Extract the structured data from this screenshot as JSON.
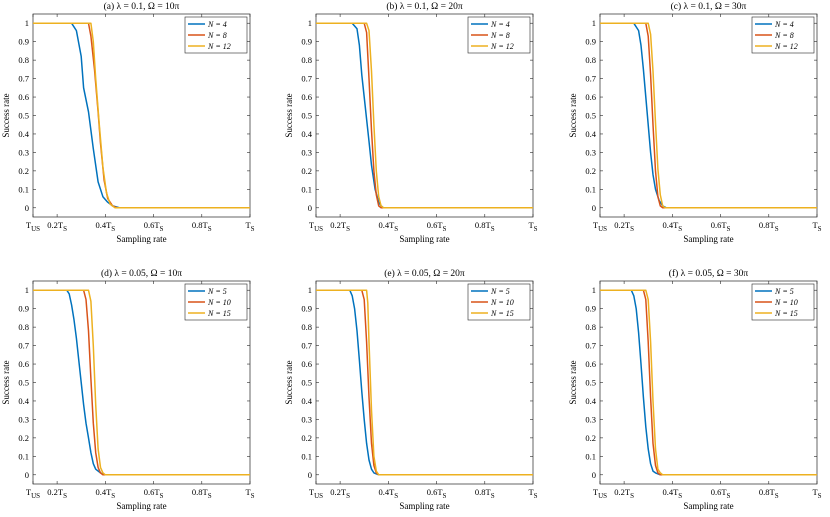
{
  "chart_data": [
    {
      "type": "line",
      "title": "(a) λ = 0.1, Ω = 10π",
      "xlabel": "Sampling rate",
      "ylabel": "Success rate",
      "xlim": [
        0.1,
        1.0
      ],
      "ylim": [
        -0.05,
        1.05
      ],
      "xtick_labels": [
        {
          "value": 0.1,
          "main": "T",
          "sub": "US"
        },
        {
          "value": 0.2,
          "main": "0.2T",
          "sub": "S"
        },
        {
          "value": 0.4,
          "main": "0.4T",
          "sub": "S"
        },
        {
          "value": 0.6,
          "main": "0.6T",
          "sub": "S"
        },
        {
          "value": 0.8,
          "main": "0.8T",
          "sub": "S"
        },
        {
          "value": 1.0,
          "main": "T",
          "sub": "S"
        }
      ],
      "ytick_labels": [
        "0",
        "0.1",
        "0.2",
        "0.3",
        "0.4",
        "0.5",
        "0.6",
        "0.7",
        "0.8",
        "0.9",
        "1"
      ],
      "legend_position": "top-right",
      "series": [
        {
          "name": "N = 4",
          "color": "#0072BD",
          "x": [
            0.1,
            0.26,
            0.28,
            0.3,
            0.31,
            0.33,
            0.35,
            0.37,
            0.39,
            0.41,
            0.43,
            0.46,
            1.0
          ],
          "y": [
            1,
            1,
            0.96,
            0.82,
            0.65,
            0.52,
            0.32,
            0.14,
            0.06,
            0.03,
            0.01,
            0,
            0
          ]
        },
        {
          "name": "N = 8",
          "color": "#D95319",
          "x": [
            0.1,
            0.33,
            0.34,
            0.355,
            0.37,
            0.38,
            0.395,
            0.41,
            0.43,
            0.45,
            1.0
          ],
          "y": [
            1,
            1,
            0.93,
            0.75,
            0.52,
            0.35,
            0.15,
            0.05,
            0.01,
            0,
            0
          ]
        },
        {
          "name": "N = 12",
          "color": "#EDB120",
          "x": [
            0.1,
            0.34,
            0.35,
            0.36,
            0.375,
            0.39,
            0.405,
            0.42,
            0.44,
            1.0
          ],
          "y": [
            1,
            1,
            0.9,
            0.7,
            0.45,
            0.22,
            0.08,
            0.02,
            0,
            0
          ]
        }
      ]
    },
    {
      "type": "line",
      "title": "(b) λ = 0.1, Ω = 20π",
      "xlabel": "Sampling rate",
      "ylabel": "Success rate",
      "xlim": [
        0.1,
        1.0
      ],
      "ylim": [
        -0.05,
        1.05
      ],
      "xtick_labels": [
        {
          "value": 0.1,
          "main": "T",
          "sub": "US"
        },
        {
          "value": 0.2,
          "main": "0.2T",
          "sub": "S"
        },
        {
          "value": 0.4,
          "main": "0.4T",
          "sub": "S"
        },
        {
          "value": 0.6,
          "main": "0.6T",
          "sub": "S"
        },
        {
          "value": 0.8,
          "main": "0.8T",
          "sub": "S"
        },
        {
          "value": 1.0,
          "main": "T",
          "sub": "S"
        }
      ],
      "ytick_labels": [
        "0",
        "0.1",
        "0.2",
        "0.3",
        "0.4",
        "0.5",
        "0.6",
        "0.7",
        "0.8",
        "0.9",
        "1"
      ],
      "legend_position": "top-right",
      "series": [
        {
          "name": "N = 4",
          "color": "#0072BD",
          "x": [
            0.1,
            0.25,
            0.27,
            0.28,
            0.29,
            0.3,
            0.31,
            0.32,
            0.33,
            0.345,
            0.36,
            0.37,
            0.38,
            1.0
          ],
          "y": [
            1,
            1,
            0.97,
            0.88,
            0.72,
            0.6,
            0.48,
            0.36,
            0.23,
            0.1,
            0.03,
            0.01,
            0,
            0
          ]
        },
        {
          "name": "N = 8",
          "color": "#D95319",
          "x": [
            0.1,
            0.3,
            0.31,
            0.32,
            0.33,
            0.34,
            0.35,
            0.36,
            0.37,
            1.0
          ],
          "y": [
            1,
            1,
            0.95,
            0.7,
            0.42,
            0.2,
            0.07,
            0.01,
            0,
            0
          ]
        },
        {
          "name": "N = 12",
          "color": "#EDB120",
          "x": [
            0.1,
            0.31,
            0.32,
            0.33,
            0.34,
            0.35,
            0.36,
            0.37,
            0.38,
            1.0
          ],
          "y": [
            1,
            1,
            0.96,
            0.74,
            0.45,
            0.2,
            0.06,
            0.01,
            0,
            0
          ]
        }
      ]
    },
    {
      "type": "line",
      "title": "(c) λ = 0.1, Ω = 30π",
      "xlabel": "Sampling rate",
      "ylabel": "Success rate",
      "xlim": [
        0.1,
        1.0
      ],
      "ylim": [
        -0.05,
        1.05
      ],
      "xtick_labels": [
        {
          "value": 0.1,
          "main": "T",
          "sub": "US"
        },
        {
          "value": 0.2,
          "main": "0.2T",
          "sub": "S"
        },
        {
          "value": 0.4,
          "main": "0.4T",
          "sub": "S"
        },
        {
          "value": 0.6,
          "main": "0.6T",
          "sub": "S"
        },
        {
          "value": 0.8,
          "main": "0.8T",
          "sub": "S"
        },
        {
          "value": 1.0,
          "main": "T",
          "sub": "S"
        }
      ],
      "ytick_labels": [
        "0",
        "0.1",
        "0.2",
        "0.3",
        "0.4",
        "0.5",
        "0.6",
        "0.7",
        "0.8",
        "0.9",
        "1"
      ],
      "legend_position": "top-right",
      "series": [
        {
          "name": "N = 4",
          "color": "#0072BD",
          "x": [
            0.1,
            0.24,
            0.26,
            0.27,
            0.28,
            0.29,
            0.3,
            0.31,
            0.32,
            0.33,
            0.345,
            0.36,
            0.375,
            1.0
          ],
          "y": [
            1,
            1,
            0.96,
            0.88,
            0.75,
            0.6,
            0.45,
            0.3,
            0.18,
            0.1,
            0.04,
            0.01,
            0,
            0
          ]
        },
        {
          "name": "N = 8",
          "color": "#D95319",
          "x": [
            0.1,
            0.29,
            0.3,
            0.31,
            0.32,
            0.33,
            0.34,
            0.35,
            0.36,
            1.0
          ],
          "y": [
            1,
            1,
            0.93,
            0.72,
            0.45,
            0.2,
            0.06,
            0.01,
            0,
            0
          ]
        },
        {
          "name": "N = 12",
          "color": "#EDB120",
          "x": [
            0.1,
            0.3,
            0.31,
            0.32,
            0.33,
            0.34,
            0.35,
            0.36,
            0.37,
            1.0
          ],
          "y": [
            1,
            1,
            0.94,
            0.74,
            0.46,
            0.21,
            0.07,
            0.01,
            0,
            0
          ]
        }
      ]
    },
    {
      "type": "line",
      "title": "(d) λ = 0.05, Ω = 10π",
      "xlabel": "Sampling rate",
      "ylabel": "Success rate",
      "xlim": [
        0.1,
        1.0
      ],
      "ylim": [
        -0.05,
        1.05
      ],
      "xtick_labels": [
        {
          "value": 0.1,
          "main": "T",
          "sub": "US"
        },
        {
          "value": 0.2,
          "main": "0.2T",
          "sub": "S"
        },
        {
          "value": 0.4,
          "main": "0.4T",
          "sub": "S"
        },
        {
          "value": 0.6,
          "main": "0.6T",
          "sub": "S"
        },
        {
          "value": 0.8,
          "main": "0.8T",
          "sub": "S"
        },
        {
          "value": 1.0,
          "main": "T",
          "sub": "S"
        }
      ],
      "ytick_labels": [
        "0",
        "0.1",
        "0.2",
        "0.3",
        "0.4",
        "0.5",
        "0.6",
        "0.7",
        "0.8",
        "0.9",
        "1"
      ],
      "legend_position": "top-right",
      "series": [
        {
          "name": "N = 5",
          "color": "#0072BD",
          "x": [
            0.1,
            0.24,
            0.25,
            0.26,
            0.27,
            0.28,
            0.29,
            0.3,
            0.31,
            0.32,
            0.33,
            0.34,
            0.35,
            0.36,
            0.38,
            0.4,
            1.0
          ],
          "y": [
            1,
            1,
            0.98,
            0.92,
            0.84,
            0.74,
            0.62,
            0.5,
            0.38,
            0.28,
            0.2,
            0.12,
            0.06,
            0.03,
            0.01,
            0,
            0
          ]
        },
        {
          "name": "N = 10",
          "color": "#D95319",
          "x": [
            0.1,
            0.31,
            0.32,
            0.33,
            0.34,
            0.35,
            0.36,
            0.37,
            0.38,
            0.39,
            1.0
          ],
          "y": [
            1,
            1,
            0.95,
            0.78,
            0.52,
            0.28,
            0.12,
            0.04,
            0.01,
            0,
            0
          ]
        },
        {
          "name": "N = 15",
          "color": "#EDB120",
          "x": [
            0.1,
            0.33,
            0.34,
            0.35,
            0.36,
            0.37,
            0.38,
            0.39,
            0.4,
            1.0
          ],
          "y": [
            1,
            1,
            0.94,
            0.7,
            0.38,
            0.14,
            0.04,
            0.01,
            0,
            0
          ]
        }
      ]
    },
    {
      "type": "line",
      "title": "(e) λ = 0.05, Ω = 20π",
      "xlabel": "Sampling rate",
      "ylabel": "Success rate",
      "xlim": [
        0.1,
        1.0
      ],
      "ylim": [
        -0.05,
        1.05
      ],
      "xtick_labels": [
        {
          "value": 0.1,
          "main": "T",
          "sub": "US"
        },
        {
          "value": 0.2,
          "main": "0.2T",
          "sub": "S"
        },
        {
          "value": 0.4,
          "main": "0.4T",
          "sub": "S"
        },
        {
          "value": 0.6,
          "main": "0.6T",
          "sub": "S"
        },
        {
          "value": 0.8,
          "main": "0.8T",
          "sub": "S"
        },
        {
          "value": 1.0,
          "main": "T",
          "sub": "S"
        }
      ],
      "ytick_labels": [
        "0",
        "0.1",
        "0.2",
        "0.3",
        "0.4",
        "0.5",
        "0.6",
        "0.7",
        "0.8",
        "0.9",
        "1"
      ],
      "legend_position": "top-right",
      "series": [
        {
          "name": "N = 5",
          "color": "#0072BD",
          "x": [
            0.1,
            0.24,
            0.25,
            0.26,
            0.27,
            0.28,
            0.29,
            0.3,
            0.31,
            0.32,
            0.33,
            0.34,
            0.36,
            1.0
          ],
          "y": [
            1,
            1,
            0.97,
            0.9,
            0.78,
            0.62,
            0.45,
            0.3,
            0.17,
            0.08,
            0.03,
            0.01,
            0,
            0
          ]
        },
        {
          "name": "N = 10",
          "color": "#D95319",
          "x": [
            0.1,
            0.29,
            0.3,
            0.31,
            0.32,
            0.33,
            0.34,
            0.35,
            0.36,
            1.0
          ],
          "y": [
            1,
            1,
            0.95,
            0.72,
            0.42,
            0.17,
            0.05,
            0.01,
            0,
            0
          ]
        },
        {
          "name": "N = 15",
          "color": "#EDB120",
          "x": [
            0.1,
            0.31,
            0.315,
            0.32,
            0.33,
            0.34,
            0.35,
            0.36,
            1.0
          ],
          "y": [
            1,
            1,
            0.93,
            0.72,
            0.35,
            0.1,
            0.02,
            0,
            0
          ]
        }
      ]
    },
    {
      "type": "line",
      "title": "(f) λ = 0.05, Ω = 30π",
      "xlabel": "Sampling rate",
      "ylabel": "Success rate",
      "xlim": [
        0.1,
        1.0
      ],
      "ylim": [
        -0.05,
        1.05
      ],
      "xtick_labels": [
        {
          "value": 0.1,
          "main": "T",
          "sub": "US"
        },
        {
          "value": 0.2,
          "main": "0.2T",
          "sub": "S"
        },
        {
          "value": 0.4,
          "main": "0.4T",
          "sub": "S"
        },
        {
          "value": 0.6,
          "main": "0.6T",
          "sub": "S"
        },
        {
          "value": 0.8,
          "main": "0.8T",
          "sub": "S"
        },
        {
          "value": 1.0,
          "main": "T",
          "sub": "S"
        }
      ],
      "ytick_labels": [
        "0",
        "0.1",
        "0.2",
        "0.3",
        "0.4",
        "0.5",
        "0.6",
        "0.7",
        "0.8",
        "0.9",
        "1"
      ],
      "legend_position": "top-right",
      "series": [
        {
          "name": "N = 5",
          "color": "#0072BD",
          "x": [
            0.1,
            0.23,
            0.24,
            0.25,
            0.26,
            0.27,
            0.28,
            0.29,
            0.3,
            0.31,
            0.32,
            0.33,
            0.35,
            1.0
          ],
          "y": [
            1,
            1,
            0.97,
            0.9,
            0.77,
            0.6,
            0.42,
            0.26,
            0.14,
            0.06,
            0.02,
            0.01,
            0,
            0
          ]
        },
        {
          "name": "N = 10",
          "color": "#D95319",
          "x": [
            0.1,
            0.28,
            0.29,
            0.3,
            0.31,
            0.32,
            0.33,
            0.34,
            0.35,
            1.0
          ],
          "y": [
            1,
            1,
            0.95,
            0.72,
            0.42,
            0.17,
            0.05,
            0.01,
            0,
            0
          ]
        },
        {
          "name": "N = 15",
          "color": "#EDB120",
          "x": [
            0.1,
            0.29,
            0.3,
            0.31,
            0.32,
            0.33,
            0.34,
            0.35,
            0.36,
            1.0
          ],
          "y": [
            1,
            1,
            0.95,
            0.72,
            0.4,
            0.14,
            0.03,
            0.01,
            0,
            0
          ]
        }
      ]
    }
  ]
}
